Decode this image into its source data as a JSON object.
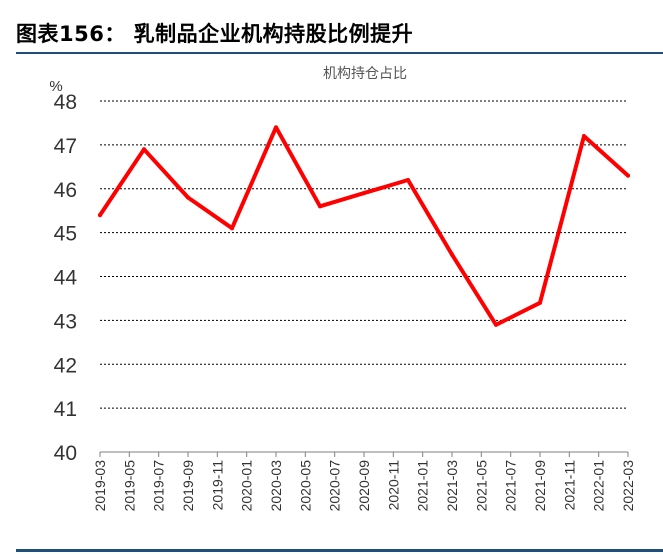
{
  "header": {
    "title": "图表156：   乳制品企业机构持股比例提升"
  },
  "chart_data": {
    "type": "line",
    "title": "机构持仓占比",
    "ylabel": "%",
    "xlabel": "",
    "ylim": [
      40,
      48
    ],
    "yticks": [
      40,
      41,
      42,
      43,
      44,
      45,
      46,
      47,
      48
    ],
    "grid": true,
    "x": [
      "2019-03",
      "2019-05",
      "2019-07",
      "2019-09",
      "2019-11",
      "2020-01",
      "2020-03",
      "2020-05",
      "2020-07",
      "2020-09",
      "2020-11",
      "2021-01",
      "2021-03",
      "2021-05",
      "2021-07",
      "2021-09",
      "2021-11",
      "2022-01",
      "2022-03"
    ],
    "series": [
      {
        "color": "#ff0000",
        "points": [
          {
            "x": "2019-03",
            "y": 45.4
          },
          {
            "x": "2019-06",
            "y": 46.9
          },
          {
            "x": "2019-09",
            "y": 45.8
          },
          {
            "x": "2019-12",
            "y": 45.1
          },
          {
            "x": "2020-03",
            "y": 47.4
          },
          {
            "x": "2020-06",
            "y": 45.6
          },
          {
            "x": "2020-09",
            "y": 45.9
          },
          {
            "x": "2020-12",
            "y": 46.2
          },
          {
            "x": "2021-03",
            "y": 44.5
          },
          {
            "x": "2021-06",
            "y": 42.9
          },
          {
            "x": "2021-09",
            "y": 43.4
          },
          {
            "x": "2021-12",
            "y": 47.2
          },
          {
            "x": "2022-03",
            "y": 46.3
          }
        ]
      }
    ]
  }
}
